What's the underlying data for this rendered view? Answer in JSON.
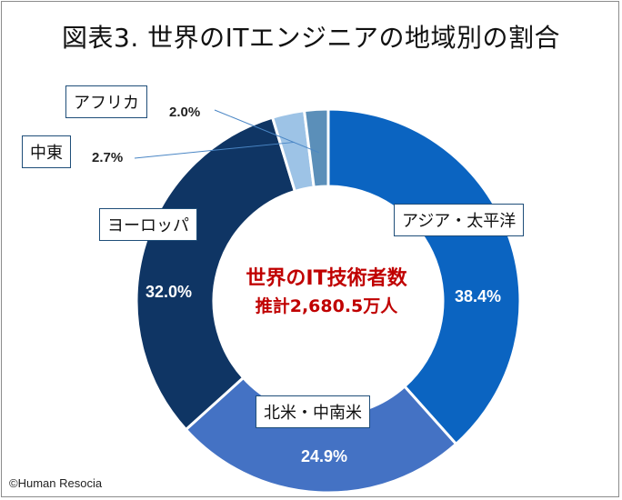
{
  "title": "図表3. 世界のITエンジニアの地域別の割合",
  "chart_data": {
    "type": "pie",
    "variant": "donut",
    "title": "図表3. 世界のITエンジニアの地域別の割合",
    "center_text": [
      "世界のIT技術者数",
      "推計2,680.5万人"
    ],
    "series": [
      {
        "name": "アジア・太平洋",
        "value": 38.4,
        "label": "38.4%",
        "color": "#0b64c1"
      },
      {
        "name": "北米・中南米",
        "value": 24.9,
        "label": "24.9%",
        "color": "#4472c4"
      },
      {
        "name": "ヨーロッパ",
        "value": 32.0,
        "label": "32.0%",
        "color": "#0f3564"
      },
      {
        "name": "中東",
        "value": 2.7,
        "label": "2.7%",
        "color": "#9dc3e6"
      },
      {
        "name": "アフリカ",
        "value": 2.0,
        "label": "2.0%",
        "color": "#5b8fb9"
      }
    ]
  },
  "copyright": "©Human Resocia"
}
